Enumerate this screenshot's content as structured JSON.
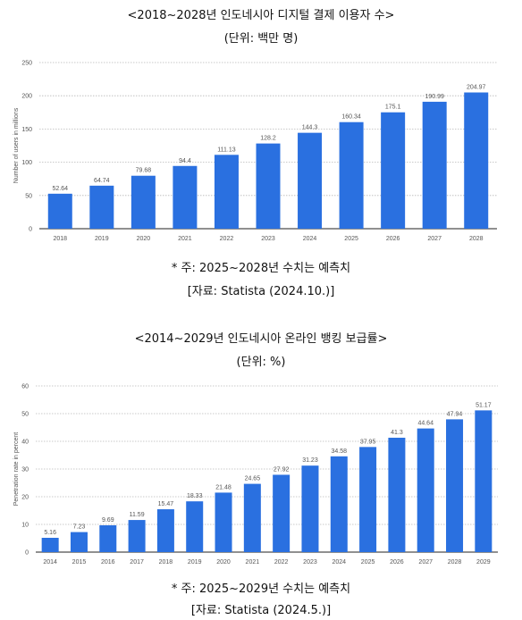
{
  "chart1": {
    "title": "<2018~2028년 인도네시아 디지털 결제 이용자 수>",
    "unit": "(단위: 백만 명)",
    "note": "* 주: 2025~2028년 수치는 예측치",
    "source": "[자료: Statista (2024.10.)]"
  },
  "chart2": {
    "title": "<2014~2029년 인도네시아 온라인 뱅킹 보급률>",
    "unit": "(단위: %)",
    "note": "* 주: 2025~2029년 수치는 예측치",
    "source": "[자료: Statista (2024.5.)]"
  },
  "colors": {
    "bar": "#2a70e0",
    "grid": "#b8b8b8",
    "axis": "#222222"
  },
  "chart_data": [
    {
      "type": "bar",
      "categories": [
        "2018",
        "2019",
        "2020",
        "2021",
        "2022",
        "2023",
        "2024",
        "2025",
        "2026",
        "2027",
        "2028"
      ],
      "values": [
        52.64,
        64.74,
        79.68,
        94.4,
        111.13,
        128.2,
        144.3,
        160.34,
        175.1,
        190.99,
        204.97
      ],
      "value_labels": [
        "52.64",
        "64.74",
        "79.68",
        "94.4",
        "111.13",
        "128.2",
        "144.3",
        "160.34",
        "175.1",
        "190.99",
        "204.97"
      ],
      "ylabel": "Number of users in millions",
      "ylim": [
        0,
        250
      ],
      "yticks": [
        "0",
        "50",
        "100",
        "150",
        "200",
        "250"
      ],
      "grid": true
    },
    {
      "type": "bar",
      "categories": [
        "2014",
        "2015",
        "2016",
        "2017",
        "2018",
        "2019",
        "2020",
        "2021",
        "2022",
        "2023",
        "2024",
        "2025",
        "2026",
        "2027",
        "2028",
        "2029"
      ],
      "values": [
        5.16,
        7.23,
        9.69,
        11.59,
        15.47,
        18.33,
        21.48,
        24.65,
        27.92,
        31.23,
        34.58,
        37.95,
        41.3,
        44.64,
        47.94,
        51.17
      ],
      "value_labels": [
        "5.16",
        "7.23",
        "9.69",
        "11.59",
        "15.47",
        "18.33",
        "21.48",
        "24.65",
        "27.92",
        "31.23",
        "34.58",
        "37.95",
        "41.3",
        "44.64",
        "47.94",
        "51.17"
      ],
      "ylabel": "Penetration rate in percent",
      "ylim": [
        0,
        60
      ],
      "yticks": [
        "0",
        "10",
        "20",
        "30",
        "40",
        "50",
        "60"
      ],
      "grid": true
    }
  ]
}
